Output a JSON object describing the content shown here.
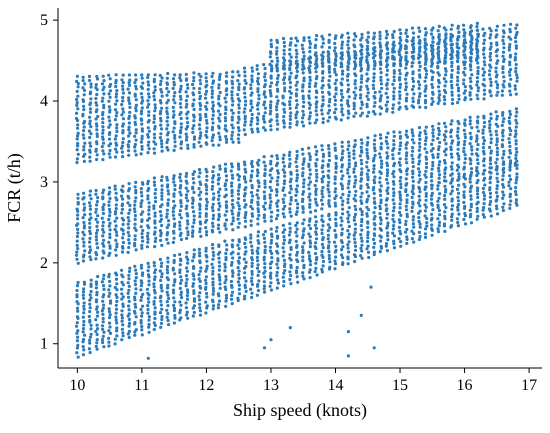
{
  "chart_data": {
    "type": "scatter",
    "xlabel": "Ship speed (knots)",
    "ylabel": "FCR (t/h)",
    "xlim": [
      9.7,
      17.2
    ],
    "ylim": [
      0.7,
      5.15
    ],
    "xticks": [
      10,
      11,
      12,
      13,
      14,
      15,
      16,
      17
    ],
    "yticks": [
      1,
      2,
      3,
      4,
      5
    ],
    "grid": false,
    "marker_color": "#2b7bba",
    "series": [
      {
        "clusters": [
          {
            "x_start": 10.0,
            "x_end": 16.8,
            "x_step": 0.1,
            "y_low": [
              0.85,
              2.7
            ],
            "y_high": [
              1.75,
              3.25
            ]
          },
          {
            "x_start": 10.0,
            "x_end": 16.8,
            "x_step": 0.1,
            "y_low": [
              2.0,
              3.2
            ],
            "y_high": [
              2.85,
              3.9
            ]
          },
          {
            "x_start": 10.0,
            "x_end": 12.5,
            "x_step": 0.1,
            "y_low": [
              3.25,
              3.5
            ],
            "y_high": [
              4.3,
              4.35
            ]
          },
          {
            "x_start": 12.6,
            "x_end": 16.8,
            "x_step": 0.1,
            "y_low": [
              3.6,
              4.1
            ],
            "y_high": [
              4.4,
              4.95
            ]
          },
          {
            "x_start": 13.0,
            "x_end": 16.2,
            "x_step": 0.1,
            "y_low": [
              4.4,
              4.5
            ],
            "y_high": [
              4.75,
              4.95
            ]
          }
        ],
        "outliers": [
          [
            14.2,
            0.85
          ],
          [
            14.2,
            1.15
          ],
          [
            14.4,
            1.35
          ],
          [
            14.55,
            1.7
          ],
          [
            14.6,
            0.95
          ],
          [
            11.1,
            0.82
          ],
          [
            13.0,
            1.05
          ],
          [
            12.9,
            0.95
          ],
          [
            13.3,
            1.2
          ]
        ]
      }
    ]
  }
}
